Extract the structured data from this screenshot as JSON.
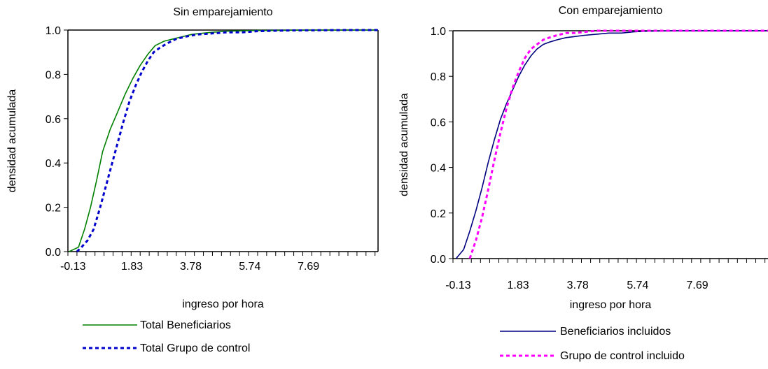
{
  "chart_data": [
    {
      "type": "line",
      "title": "Sin emparejamiento",
      "xlabel": "ingreso por hora",
      "ylabel": "densidad acumulada",
      "xlim": [
        -0.3,
        10.0
      ],
      "ylim": [
        0.0,
        1.0
      ],
      "x_tick_labels": [
        "-0.13",
        "1.83",
        "3.78",
        "5.74",
        "7.69"
      ],
      "x_tick_values": [
        -0.13,
        1.83,
        3.78,
        5.74,
        7.69
      ],
      "y_tick_labels": [
        "0.0",
        "0.2",
        "0.4",
        "0.6",
        "0.8",
        "1.0"
      ],
      "y_tick_values": [
        0.0,
        0.2,
        0.4,
        0.6,
        0.8,
        1.0
      ],
      "grid": false,
      "legend_position": "bottom",
      "series": [
        {
          "name": "Total Beneficiarios",
          "color": "#008000",
          "style": "solid",
          "x": [
            -0.26,
            0.05,
            0.25,
            0.45,
            0.65,
            0.85,
            1.1,
            1.35,
            1.6,
            1.85,
            2.1,
            2.35,
            2.6,
            2.9,
            3.2,
            3.5,
            3.8,
            4.1,
            4.5,
            5.0,
            5.5,
            6.0,
            6.5,
            7.0,
            8.0,
            9.0,
            10.0
          ],
          "y": [
            0.0,
            0.02,
            0.1,
            0.2,
            0.32,
            0.45,
            0.55,
            0.63,
            0.71,
            0.78,
            0.84,
            0.89,
            0.93,
            0.95,
            0.96,
            0.97,
            0.98,
            0.985,
            0.99,
            0.995,
            0.997,
            0.998,
            0.998,
            0.999,
            1.0,
            1.0,
            1.0
          ]
        },
        {
          "name": "Total Grupo de control",
          "color": "#0000cc",
          "style": "dashed",
          "x": [
            0.0,
            0.15,
            0.35,
            0.55,
            0.75,
            0.95,
            1.15,
            1.35,
            1.55,
            1.75,
            1.95,
            2.15,
            2.35,
            2.55,
            2.75,
            3.0,
            3.3,
            3.6,
            4.0,
            4.5,
            5.0,
            5.5,
            6.0,
            6.5,
            7.0,
            8.0,
            9.0,
            10.0
          ],
          "y": [
            0.0,
            0.02,
            0.05,
            0.1,
            0.19,
            0.29,
            0.39,
            0.49,
            0.59,
            0.68,
            0.75,
            0.81,
            0.86,
            0.9,
            0.92,
            0.94,
            0.96,
            0.97,
            0.98,
            0.985,
            0.99,
            0.99,
            0.995,
            0.997,
            0.998,
            0.999,
            1.0,
            1.0
          ]
        }
      ]
    },
    {
      "type": "line",
      "title": "Con emparejamiento",
      "xlabel": "ingreso por hora",
      "ylabel": "densidad acumulada",
      "xlim": [
        -0.3,
        10.0
      ],
      "ylim": [
        0.0,
        1.0
      ],
      "x_tick_labels": [
        "-0.13",
        "1.83",
        "3.78",
        "5.74",
        "7.69"
      ],
      "x_tick_values": [
        -0.13,
        1.83,
        3.78,
        5.74,
        7.69
      ],
      "y_tick_labels": [
        "0.0",
        "0.2",
        "0.4",
        "0.6",
        "0.8",
        "1.0"
      ],
      "y_tick_values": [
        0.0,
        0.2,
        0.4,
        0.6,
        0.8,
        1.0
      ],
      "grid": false,
      "legend_position": "bottom",
      "series": [
        {
          "name": "Beneficiarios incluidos",
          "color": "#000080",
          "style": "solid",
          "x": [
            -0.2,
            0.05,
            0.25,
            0.45,
            0.65,
            0.85,
            1.05,
            1.25,
            1.45,
            1.65,
            1.85,
            2.05,
            2.25,
            2.45,
            2.65,
            2.85,
            3.1,
            3.4,
            3.7,
            4.0,
            4.4,
            4.8,
            5.2,
            5.6,
            6.0,
            7.0,
            8.0,
            9.0,
            10.0
          ],
          "y": [
            0.0,
            0.04,
            0.12,
            0.21,
            0.31,
            0.42,
            0.52,
            0.61,
            0.68,
            0.74,
            0.8,
            0.85,
            0.89,
            0.92,
            0.94,
            0.95,
            0.96,
            0.97,
            0.975,
            0.98,
            0.985,
            0.99,
            0.99,
            0.995,
            0.998,
            1.0,
            1.0,
            1.0,
            1.0
          ]
        },
        {
          "name": "Grupo de control incluido",
          "color": "#ff00ff",
          "style": "dashed",
          "x": [
            0.25,
            0.45,
            0.65,
            0.85,
            1.05,
            1.25,
            1.45,
            1.65,
            1.85,
            2.05,
            2.25,
            2.45,
            2.65,
            2.85,
            3.1,
            3.4,
            3.7,
            4.0,
            4.4,
            4.8,
            5.2,
            6.0,
            7.0,
            8.0,
            9.0,
            10.0
          ],
          "y": [
            0.0,
            0.08,
            0.18,
            0.3,
            0.43,
            0.55,
            0.66,
            0.75,
            0.82,
            0.88,
            0.92,
            0.94,
            0.96,
            0.97,
            0.98,
            0.99,
            0.99,
            0.995,
            1.0,
            1.0,
            1.0,
            1.0,
            1.0,
            1.0,
            1.0,
            1.0
          ]
        }
      ]
    }
  ]
}
